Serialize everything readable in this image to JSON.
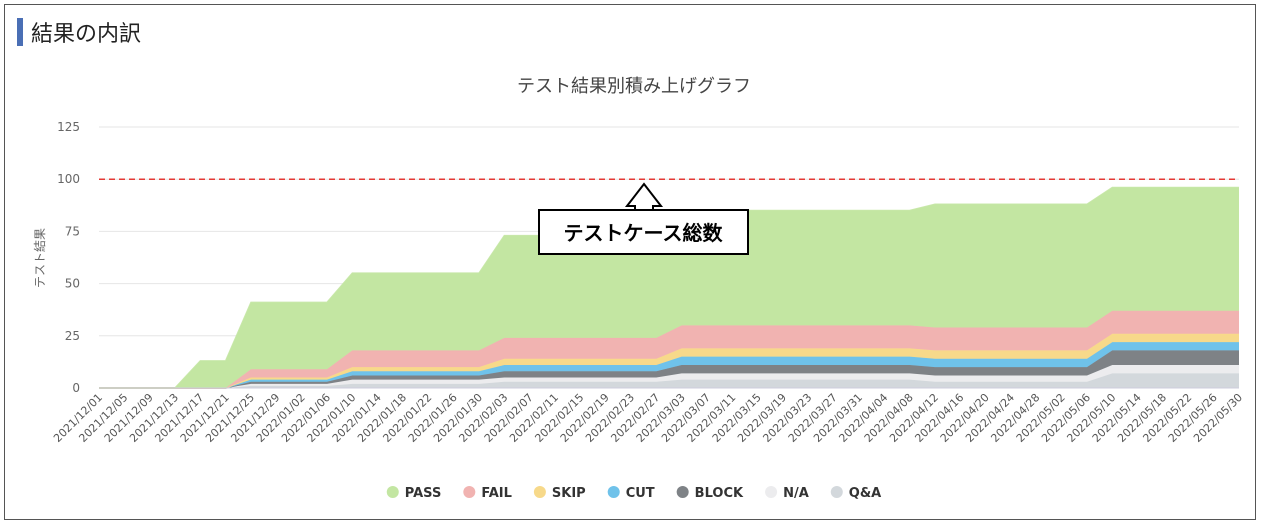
{
  "section": {
    "title": "結果の内訳"
  },
  "chart_data": {
    "type": "area",
    "stacked": true,
    "title": "テスト結果別積み上げグラフ",
    "xlabel": "",
    "ylabel": "テスト結果",
    "ylim": [
      0,
      125
    ],
    "yticks": [
      0,
      25,
      50,
      75,
      100,
      125
    ],
    "grid": true,
    "legend_position": "bottom",
    "x": [
      "2021/12/01",
      "2021/12/05",
      "2021/12/09",
      "2021/12/13",
      "2021/12/17",
      "2021/12/21",
      "2021/12/25",
      "2021/12/29",
      "2022/01/02",
      "2022/01/06",
      "2022/01/10",
      "2022/01/14",
      "2022/01/18",
      "2022/01/22",
      "2022/01/26",
      "2022/01/30",
      "2022/02/03",
      "2022/02/07",
      "2022/02/11",
      "2022/02/15",
      "2022/02/19",
      "2022/02/23",
      "2022/02/27",
      "2022/03/03",
      "2022/03/07",
      "2022/03/11",
      "2022/03/15",
      "2022/03/19",
      "2022/03/23",
      "2022/03/27",
      "2022/03/31",
      "2022/04/04",
      "2022/04/08",
      "2022/04/12",
      "2022/04/16",
      "2022/04/20",
      "2022/04/24",
      "2022/04/28",
      "2022/05/02",
      "2022/05/06",
      "2022/05/10",
      "2022/05/14",
      "2022/05/18",
      "2022/05/22",
      "2022/05/26",
      "2022/05/30"
    ],
    "series": [
      {
        "name": "Q&A",
        "color": "#d3d8dc",
        "values": [
          0,
          0,
          0,
          0,
          0,
          0,
          1,
          1,
          1,
          1,
          2,
          2,
          2,
          2,
          2,
          2,
          3,
          3,
          3,
          3,
          3,
          3,
          3,
          4,
          4,
          4,
          4,
          4,
          4,
          4,
          4,
          4,
          4,
          3,
          3,
          3,
          3,
          3,
          3,
          3,
          7,
          7,
          7,
          7,
          7,
          7
        ]
      },
      {
        "name": "N/A",
        "color": "#ececee",
        "values": [
          0,
          0,
          0,
          0,
          0,
          0,
          1,
          1,
          1,
          1,
          2,
          2,
          2,
          2,
          2,
          2,
          2,
          2,
          2,
          2,
          2,
          2,
          2,
          3,
          3,
          3,
          3,
          3,
          3,
          3,
          3,
          3,
          3,
          3,
          3,
          3,
          3,
          3,
          3,
          3,
          4,
          4,
          4,
          4,
          4,
          4
        ]
      },
      {
        "name": "BLOCK",
        "color": "#7e8286",
        "values": [
          0,
          0,
          0,
          0,
          0,
          0,
          1,
          1,
          1,
          1,
          2,
          2,
          2,
          2,
          2,
          2,
          3,
          3,
          3,
          3,
          3,
          3,
          3,
          4,
          4,
          4,
          4,
          4,
          4,
          4,
          4,
          4,
          4,
          4,
          4,
          4,
          4,
          4,
          4,
          4,
          7,
          7,
          7,
          7,
          7,
          7
        ]
      },
      {
        "name": "CUT",
        "color": "#6fc2ea",
        "values": [
          0,
          0,
          0,
          0,
          0,
          0,
          1,
          1,
          1,
          1,
          2,
          2,
          2,
          2,
          2,
          2,
          3,
          3,
          3,
          3,
          3,
          3,
          3,
          4,
          4,
          4,
          4,
          4,
          4,
          4,
          4,
          4,
          4,
          4,
          4,
          4,
          4,
          4,
          4,
          4,
          4,
          4,
          4,
          4,
          4,
          4
        ]
      },
      {
        "name": "SKIP",
        "color": "#f7d98a",
        "values": [
          0,
          0,
          0,
          0,
          0,
          0,
          1,
          1,
          1,
          1,
          2,
          2,
          2,
          2,
          2,
          2,
          3,
          3,
          3,
          3,
          3,
          3,
          3,
          4,
          4,
          4,
          4,
          4,
          4,
          4,
          4,
          4,
          4,
          4,
          4,
          4,
          4,
          4,
          4,
          4,
          4,
          4,
          4,
          4,
          4,
          4
        ]
      },
      {
        "name": "FAIL",
        "color": "#f1b3b1",
        "values": [
          0,
          0,
          0,
          0,
          0,
          0,
          4,
          4,
          4,
          4,
          8,
          8,
          8,
          8,
          8,
          8,
          10,
          10,
          10,
          10,
          10,
          10,
          10,
          11,
          11,
          11,
          11,
          11,
          11,
          11,
          11,
          11,
          11,
          11,
          11,
          11,
          11,
          11,
          11,
          11,
          11,
          11,
          11,
          11,
          11,
          11
        ]
      },
      {
        "name": "PASS",
        "color": "#c3e6a2",
        "values": [
          0,
          0,
          0,
          0,
          13,
          13,
          32,
          32,
          32,
          32,
          37,
          37,
          37,
          37,
          37,
          37,
          49,
          49,
          49,
          49,
          49,
          49,
          49,
          52,
          55,
          55,
          55,
          55,
          55,
          55,
          55,
          55,
          55,
          59,
          59,
          59,
          59,
          59,
          59,
          59,
          59,
          59,
          59,
          59,
          59,
          59
        ]
      }
    ],
    "reference_line": {
      "value": 100,
      "color": "#e53935"
    },
    "annotation": {
      "text": "テストケース総数"
    }
  }
}
